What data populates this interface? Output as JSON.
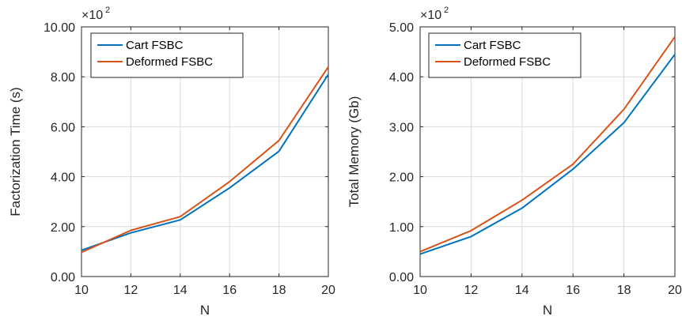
{
  "chart_data": [
    {
      "type": "line",
      "title": "",
      "xlabel": "N",
      "ylabel": "Factorization Time (s)",
      "exponent_label": "×10",
      "exponent_power": "2",
      "x": [
        10,
        12,
        14,
        16,
        18,
        20
      ],
      "xlim": [
        10,
        20
      ],
      "ylim": [
        0,
        10
      ],
      "x_ticks": [
        "10",
        "12",
        "14",
        "16",
        "18",
        "20"
      ],
      "y_ticks": [
        "0.00",
        "2.00",
        "4.00",
        "6.00",
        "8.00",
        "10.00"
      ],
      "grid": true,
      "legend_position": "top-left",
      "series": [
        {
          "name": "Cart FSBC",
          "color": "#0072BD",
          "values": [
            1.05,
            1.75,
            2.27,
            3.55,
            5.02,
            8.1
          ]
        },
        {
          "name": "Deformed FSBC",
          "color": "#D95319",
          "values": [
            0.97,
            1.85,
            2.4,
            3.8,
            5.45,
            8.4
          ]
        }
      ]
    },
    {
      "type": "line",
      "title": "",
      "xlabel": "N",
      "ylabel": "Total Memory (Gb)",
      "exponent_label": "×10",
      "exponent_power": "2",
      "x": [
        10,
        12,
        14,
        16,
        18,
        20
      ],
      "xlim": [
        10,
        20
      ],
      "ylim": [
        0,
        5
      ],
      "x_ticks": [
        "10",
        "12",
        "14",
        "16",
        "18",
        "20"
      ],
      "y_ticks": [
        "0.00",
        "1.00",
        "2.00",
        "3.00",
        "4.00",
        "5.00"
      ],
      "grid": true,
      "legend_position": "top-left",
      "series": [
        {
          "name": "Cart FSBC",
          "color": "#0072BD",
          "values": [
            0.45,
            0.8,
            1.37,
            2.15,
            3.08,
            4.45
          ]
        },
        {
          "name": "Deformed FSBC",
          "color": "#D95319",
          "values": [
            0.5,
            0.92,
            1.53,
            2.25,
            3.35,
            4.8
          ]
        }
      ]
    }
  ]
}
